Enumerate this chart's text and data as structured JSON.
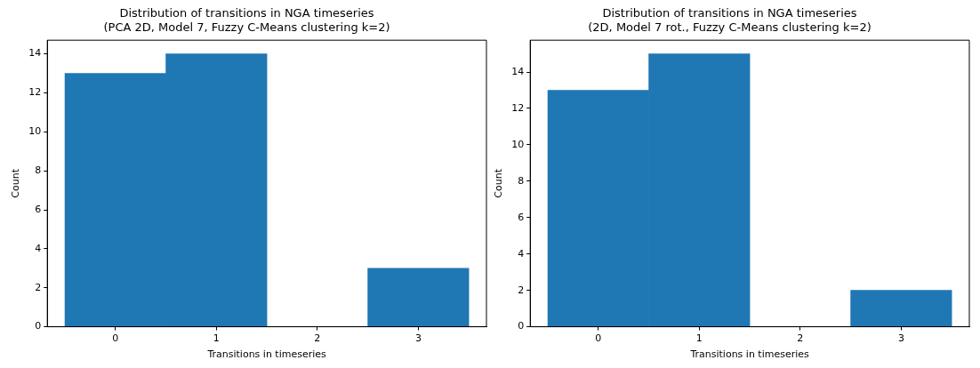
{
  "chart_data": [
    {
      "type": "histogram",
      "title": "Distribution of transitions in NGA timeseries\n(PCA 2D, Model 7, Fuzzy C-Means clustering k=2)",
      "xlabel": "Transitions in timeseries",
      "ylabel": "Count",
      "bins": [
        -0.5,
        0.5,
        1.5,
        2.5,
        3.5
      ],
      "values": [
        13,
        14,
        0,
        3
      ],
      "color": "#1f77b4",
      "xlim": [
        -0.675,
        3.675
      ],
      "xticks": [
        0,
        1,
        2,
        3
      ],
      "ylim": [
        0,
        14.7
      ],
      "yticks": [
        0,
        2,
        4,
        6,
        8,
        10,
        12,
        14
      ],
      "grid": false,
      "legend": false
    },
    {
      "type": "histogram",
      "title": "Distribution of transitions in NGA timeseries\n(2D, Model 7 rot., Fuzzy C-Means clustering k=2)",
      "xlabel": "Transitions in timeseries",
      "ylabel": "Count",
      "bins": [
        -0.5,
        0.5,
        1.5,
        2.5,
        3.5
      ],
      "values": [
        13,
        15,
        0,
        2
      ],
      "color": "#1f77b4",
      "xlim": [
        -0.675,
        3.675
      ],
      "xticks": [
        0,
        1,
        2,
        3
      ],
      "ylim": [
        0,
        15.75
      ],
      "yticks": [
        0,
        2,
        4,
        6,
        8,
        10,
        12,
        14
      ],
      "grid": false,
      "legend": false
    }
  ]
}
